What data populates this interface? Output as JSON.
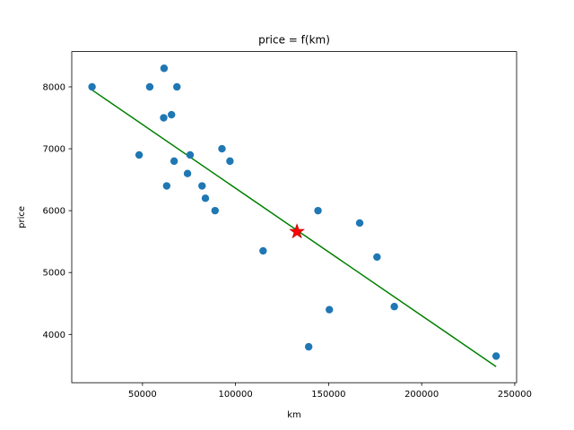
{
  "chart_data": {
    "type": "scatter",
    "title": "price = f(km)",
    "xlabel": "km",
    "ylabel": "price",
    "xlim": [
      12000,
      251000
    ],
    "ylim": [
      3220,
      8570
    ],
    "x_ticks": [
      50000,
      100000,
      150000,
      200000,
      250000
    ],
    "y_ticks": [
      4000,
      5000,
      6000,
      7000,
      8000
    ],
    "x_tick_labels": [
      "50000",
      "100000",
      "150000",
      "200000",
      "250000"
    ],
    "y_tick_labels": [
      "4000",
      "5000",
      "6000",
      "7000",
      "8000"
    ],
    "series": [
      {
        "type": "scatter",
        "color": "#1f77b4",
        "points": [
          [
            22900,
            8000
          ],
          [
            48200,
            6900
          ],
          [
            53900,
            8000
          ],
          [
            61400,
            7500
          ],
          [
            61600,
            8300
          ],
          [
            63000,
            6400
          ],
          [
            65600,
            7550
          ],
          [
            67000,
            6800
          ],
          [
            68500,
            8000
          ],
          [
            74200,
            6600
          ],
          [
            75600,
            6900
          ],
          [
            82000,
            6400
          ],
          [
            83800,
            6200
          ],
          [
            89000,
            6000
          ],
          [
            92700,
            7000
          ],
          [
            97000,
            6800
          ],
          [
            114800,
            5350
          ],
          [
            139300,
            3800
          ],
          [
            144300,
            6000
          ],
          [
            150400,
            4400
          ],
          [
            166700,
            5800
          ],
          [
            176000,
            5250
          ],
          [
            185300,
            4450
          ],
          [
            240000,
            3650
          ]
        ]
      },
      {
        "type": "line",
        "color": "#008000",
        "points": [
          [
            22900,
            7950
          ],
          [
            240000,
            3480
          ]
        ]
      },
      {
        "type": "marker",
        "shape": "star",
        "color": "#ff0000",
        "points": [
          [
            133000,
            5660
          ]
        ]
      }
    ],
    "grid": false,
    "legend": false
  }
}
